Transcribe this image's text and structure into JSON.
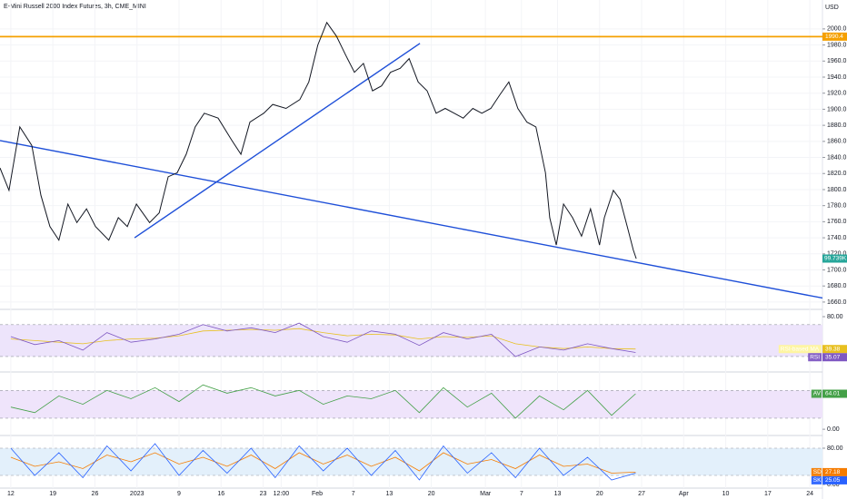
{
  "chart_data": [
    {
      "type": "line",
      "title": "E-Mini Russell 2000 Index Futures, 3h, CME_MINI",
      "currency": "USD",
      "xlim": [
        -1.8,
        135.1
      ],
      "ylim": [
        1652,
        2036
      ],
      "xticks": [
        {
          "value": 0,
          "label": "12"
        },
        {
          "value": 7,
          "label": "19"
        },
        {
          "value": 14,
          "label": "26"
        },
        {
          "value": 21,
          "label": "2023"
        },
        {
          "value": 28,
          "label": "9"
        },
        {
          "value": 35,
          "label": "16"
        },
        {
          "value": 42,
          "label": "23"
        },
        {
          "value": 45,
          "label": "12:00"
        },
        {
          "value": 51,
          "label": "Feb"
        },
        {
          "value": 57,
          "label": "7"
        },
        {
          "value": 63,
          "label": "13"
        },
        {
          "value": 70,
          "label": "20"
        },
        {
          "value": 79,
          "label": "Mar"
        },
        {
          "value": 85,
          "label": "7"
        },
        {
          "value": 91,
          "label": "13"
        },
        {
          "value": 98,
          "label": "20"
        },
        {
          "value": 105,
          "label": "27"
        },
        {
          "value": 112,
          "label": "Apr"
        },
        {
          "value": 119,
          "label": "10"
        },
        {
          "value": 126,
          "label": "17"
        },
        {
          "value": 133,
          "label": "24"
        }
      ],
      "yticks": [
        {
          "value": 1660,
          "label": "1660.0"
        },
        {
          "value": 1680,
          "label": "1680.0"
        },
        {
          "value": 1700,
          "label": "1700.0"
        },
        {
          "value": 1720,
          "label": "1720.0"
        },
        {
          "value": 1740,
          "label": "1740.0"
        },
        {
          "value": 1760,
          "label": "1760.0"
        },
        {
          "value": 1780,
          "label": "1780.0"
        },
        {
          "value": 1800,
          "label": "1800.0"
        },
        {
          "value": 1820,
          "label": "1820.0"
        },
        {
          "value": 1840,
          "label": "1840.0"
        },
        {
          "value": 1860,
          "label": "1860.0"
        },
        {
          "value": 1880,
          "label": "1880.0"
        },
        {
          "value": 1900,
          "label": "1900.0"
        },
        {
          "value": 1920,
          "label": "1920.0"
        },
        {
          "value": 1940,
          "label": "1940.0"
        },
        {
          "value": 1960,
          "label": "1960.0"
        },
        {
          "value": 1980,
          "label": "1980.0"
        },
        {
          "value": 2000,
          "label": "2000.0"
        }
      ],
      "x": [
        -1.8,
        -0.3,
        1.5,
        3.5,
        5.0,
        6.5,
        8.0,
        9.5,
        11.0,
        12.6,
        14.1,
        16.3,
        17.9,
        19.4,
        20.9,
        23.1,
        24.7,
        26.2,
        27.7,
        29.2,
        30.7,
        32.2,
        34.5,
        36.8,
        38.3,
        39.8,
        42.1,
        43.6,
        45.8,
        48.1,
        49.6,
        51.1,
        52.6,
        54.2,
        55.7,
        57.2,
        58.7,
        60.2,
        61.7,
        63.2,
        64.8,
        66.3,
        67.8,
        69.3,
        70.8,
        72.3,
        73.8,
        75.3,
        76.9,
        78.4,
        79.9,
        81.4,
        82.9,
        84.4,
        85.9,
        87.4,
        89.0,
        89.7,
        90.8,
        92.0,
        93.5,
        95.0,
        96.5,
        98.0,
        98.8,
        100.3,
        101.4,
        102.6,
        103.6,
        104.1
      ],
      "series": [
        {
          "color": "#131722",
          "values": [
            1827,
            1799,
            1878,
            1855,
            1793,
            1754,
            1737,
            1782,
            1759,
            1776,
            1754,
            1737,
            1765,
            1754,
            1782,
            1759,
            1771,
            1816,
            1821,
            1844,
            1878,
            1895,
            1889,
            1861,
            1844,
            1884,
            1895,
            1906,
            1901,
            1912,
            1934,
            1980,
            2008,
            1991,
            1968,
            1946,
            1957,
            1923,
            1929,
            1946,
            1951,
            1963,
            1934,
            1923,
            1895,
            1901,
            1895,
            1889,
            1901,
            1895,
            1901,
            1918,
            1934,
            1901,
            1884,
            1878,
            1821,
            1765,
            1731,
            1782,
            1765,
            1742,
            1776,
            1731,
            1765,
            1799,
            1788,
            1754,
            1725,
            1714
          ]
        }
      ],
      "hline": {
        "value": 1990.4,
        "color": "#f5a000"
      },
      "trendlines": [
        {
          "color": "#1e4fd8",
          "x": [
            -1.8,
            135.1
          ],
          "values": [
            1861,
            1665
          ]
        },
        {
          "color": "#1e4fd8",
          "x": [
            20.6,
            68.1
          ],
          "values": [
            1740,
            1982
          ]
        }
      ],
      "volume_label": "99.739K"
    },
    {
      "type": "line",
      "ylim": [
        12.9,
        88
      ],
      "band": [
        30,
        70
      ],
      "band_color": "#ede4fb",
      "yticks": [
        {
          "value": 80,
          "label": "80.00"
        }
      ],
      "x": [
        0,
        4,
        8,
        12,
        16,
        20,
        24,
        28,
        32,
        36,
        40,
        44,
        48,
        52,
        56,
        60,
        64,
        68,
        72,
        76,
        80,
        84,
        88,
        92,
        96,
        100,
        104
      ],
      "series": [
        {
          "name": "RSI-based MA",
          "color": "#e8c020",
          "values": [
            52,
            50,
            48,
            46,
            50,
            52,
            53,
            56,
            62,
            63,
            64,
            63,
            65,
            60,
            56,
            58,
            57,
            52,
            55,
            54,
            56,
            46,
            42,
            40,
            42,
            40,
            39.38
          ],
          "last_value": 39.38
        },
        {
          "name": "RSI",
          "color": "#7e57c2",
          "values": [
            55,
            45,
            50,
            38,
            60,
            48,
            52,
            58,
            70,
            62,
            66,
            60,
            72,
            55,
            48,
            62,
            58,
            44,
            60,
            52,
            58,
            30,
            42,
            38,
            46,
            40,
            35.07
          ],
          "last_value": 35.07
        }
      ]
    },
    {
      "type": "line",
      "ylim": [
        -8,
        100
      ],
      "band": [
        20,
        70
      ],
      "band_color": "#efe4fb",
      "yticks": [
        {
          "value": 0,
          "label": "0.00"
        }
      ],
      "x": [
        0,
        4,
        8,
        12,
        16,
        20,
        24,
        28,
        32,
        36,
        40,
        44,
        48,
        52,
        56,
        60,
        64,
        68,
        72,
        76,
        80,
        84,
        88,
        92,
        96,
        100,
        104
      ],
      "series": [
        {
          "name": "AV",
          "color": "#43a047",
          "values": [
            40,
            30,
            60,
            45,
            70,
            55,
            75,
            50,
            80,
            65,
            75,
            60,
            70,
            45,
            60,
            55,
            70,
            30,
            75,
            40,
            65,
            20,
            60,
            35,
            70,
            25,
            64.01
          ],
          "last_value": 64.01
        }
      ]
    },
    {
      "type": "line",
      "ylim": [
        -6,
        104
      ],
      "band": [
        20,
        80
      ],
      "band_color": "#e3f0fb",
      "yticks": [
        {
          "value": 80,
          "label": "80.00"
        },
        {
          "value": 0,
          "label": "0.00"
        }
      ],
      "x": [
        0,
        4,
        8,
        12,
        16,
        20,
        24,
        28,
        32,
        36,
        40,
        44,
        48,
        52,
        56,
        60,
        64,
        68,
        72,
        76,
        80,
        84,
        88,
        92,
        96,
        100,
        104
      ],
      "series": [
        {
          "name": "SD",
          "color": "#f57c00",
          "values": [
            60,
            40,
            50,
            35,
            65,
            50,
            70,
            45,
            60,
            40,
            65,
            35,
            70,
            45,
            65,
            40,
            60,
            30,
            70,
            45,
            55,
            35,
            65,
            40,
            45,
            25,
            27.18
          ],
          "last_value": 27.18
        },
        {
          "name": "SK",
          "color": "#2962ff",
          "values": [
            80,
            20,
            70,
            15,
            85,
            30,
            90,
            20,
            75,
            25,
            80,
            15,
            85,
            30,
            80,
            20,
            75,
            10,
            85,
            25,
            70,
            15,
            80,
            20,
            60,
            10,
            25.05
          ],
          "last_value": 25.05
        }
      ]
    }
  ]
}
